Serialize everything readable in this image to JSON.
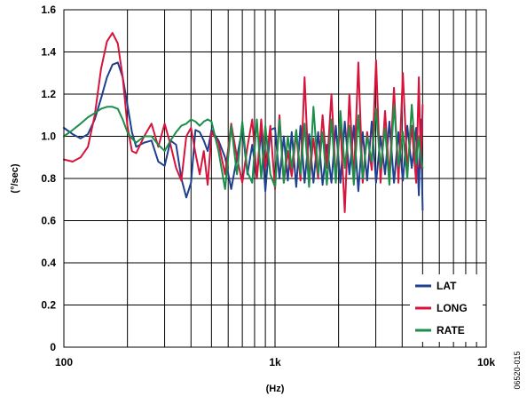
{
  "chart_data": {
    "type": "line",
    "xscale": "log",
    "xlim": [
      100,
      10000
    ],
    "ylim": [
      0,
      1.6
    ],
    "xlabel": "(Hz)",
    "ylabel": "(°/sec)",
    "figure_id": "06520-015",
    "grid": true,
    "legend_position": "bottom-right",
    "x_ticks": [
      {
        "value": 100,
        "label": "100"
      },
      {
        "value": 1000,
        "label": "1k"
      },
      {
        "value": 10000,
        "label": "10k"
      }
    ],
    "y_ticks": [
      {
        "value": 0,
        "label": "0"
      },
      {
        "value": 0.2,
        "label": "0.2"
      },
      {
        "value": 0.4,
        "label": "0.4"
      },
      {
        "value": 0.6,
        "label": "0.6"
      },
      {
        "value": 0.8,
        "label": "0.8"
      },
      {
        "value": 1.0,
        "label": "1.0"
      },
      {
        "value": 1.2,
        "label": "1.2"
      },
      {
        "value": 1.4,
        "label": "1.4"
      },
      {
        "value": 1.6,
        "label": "1.6"
      }
    ],
    "series": [
      {
        "name": "LAT",
        "color": "#1f3f8f",
        "x": [
          100,
          110,
          120,
          130,
          140,
          150,
          160,
          170,
          180,
          190,
          200,
          210,
          220,
          240,
          260,
          280,
          300,
          320,
          340,
          360,
          380,
          400,
          420,
          440,
          460,
          480,
          500,
          540,
          580,
          620,
          660,
          700,
          740,
          780,
          820,
          860,
          900,
          950,
          1000,
          1050,
          1100,
          1150,
          1200,
          1260,
          1320,
          1380,
          1450,
          1520,
          1600,
          1680,
          1760,
          1850,
          1940,
          2040,
          2140,
          2250,
          2360,
          2480,
          2600,
          2730,
          2870,
          3010,
          3160,
          3320,
          3480,
          3660,
          3840,
          4030,
          4230,
          4440,
          4660,
          4800,
          4900,
          5000
        ],
        "y": [
          1.04,
          1.01,
          0.99,
          1.01,
          1.08,
          1.18,
          1.28,
          1.34,
          1.35,
          1.28,
          1.15,
          1.02,
          0.95,
          0.97,
          0.98,
          0.88,
          0.86,
          0.98,
          0.96,
          0.8,
          0.71,
          0.78,
          1.03,
          1.02,
          0.98,
          0.93,
          1.03,
          0.98,
          0.9,
          0.75,
          0.9,
          1.04,
          0.82,
          0.96,
          0.8,
          1.03,
          0.74,
          1.03,
          1.04,
          0.8,
          1.0,
          0.79,
          1.02,
          0.76,
          1.05,
          0.78,
          1.01,
          0.78,
          1.02,
          0.77,
          0.96,
          0.78,
          1.05,
          0.78,
          1.07,
          0.82,
          1.05,
          0.74,
          1.02,
          0.79,
          1.07,
          0.78,
          1.0,
          0.82,
          1.07,
          0.78,
          1.02,
          0.79,
          1.05,
          0.85,
          1.04,
          0.72,
          1.08,
          0.65
        ]
      },
      {
        "name": "LONG",
        "color": "#d6143c",
        "x": [
          100,
          110,
          120,
          130,
          140,
          150,
          160,
          170,
          180,
          190,
          200,
          210,
          220,
          240,
          260,
          280,
          300,
          320,
          340,
          360,
          380,
          400,
          420,
          440,
          460,
          480,
          500,
          540,
          580,
          620,
          660,
          700,
          740,
          780,
          820,
          860,
          900,
          950,
          1000,
          1050,
          1100,
          1150,
          1200,
          1260,
          1320,
          1380,
          1450,
          1520,
          1600,
          1680,
          1760,
          1850,
          1940,
          2040,
          2140,
          2250,
          2360,
          2480,
          2600,
          2730,
          2870,
          3010,
          3160,
          3320,
          3480,
          3660,
          3840,
          4030,
          4230,
          4440,
          4660,
          4800,
          4900,
          5000
        ],
        "y": [
          0.89,
          0.88,
          0.9,
          0.95,
          1.1,
          1.32,
          1.45,
          1.49,
          1.44,
          1.28,
          1.05,
          0.93,
          0.92,
          1.0,
          1.06,
          0.95,
          1.06,
          0.96,
          0.85,
          0.79,
          1.0,
          1.04,
          0.92,
          0.82,
          0.93,
          0.77,
          1.02,
          0.97,
          0.82,
          1.06,
          0.9,
          0.78,
          0.95,
          1.08,
          0.8,
          1.08,
          0.85,
          1.05,
          0.75,
          1.1,
          0.78,
          0.93,
          0.81,
          1.02,
          0.79,
          1.28,
          0.78,
          0.99,
          0.8,
          1.1,
          0.85,
          1.2,
          0.8,
          1.06,
          0.64,
          1.2,
          0.79,
          1.35,
          0.78,
          1.02,
          0.84,
          1.36,
          0.78,
          1.12,
          0.8,
          1.23,
          0.78,
          1.3,
          0.84,
          1.05,
          0.78,
          1.28,
          0.85,
          1.15
        ]
      },
      {
        "name": "RATE",
        "color": "#1b8f4a",
        "x": [
          100,
          110,
          120,
          130,
          140,
          150,
          160,
          170,
          180,
          190,
          200,
          210,
          220,
          240,
          260,
          280,
          300,
          320,
          340,
          360,
          380,
          400,
          420,
          440,
          460,
          480,
          500,
          540,
          580,
          620,
          660,
          700,
          740,
          780,
          820,
          860,
          900,
          950,
          1000,
          1050,
          1100,
          1150,
          1200,
          1260,
          1320,
          1380,
          1450,
          1520,
          1600,
          1680,
          1760,
          1850,
          1940,
          2040,
          2140,
          2250,
          2360,
          2480,
          2600,
          2730,
          2870,
          3010,
          3160,
          3320,
          3480,
          3660,
          3840,
          4030,
          4230,
          4440,
          4660,
          4800,
          4900,
          5000
        ],
        "y": [
          1.0,
          1.03,
          1.06,
          1.09,
          1.11,
          1.13,
          1.14,
          1.14,
          1.13,
          1.08,
          1.02,
          0.99,
          0.97,
          1.0,
          1.0,
          0.96,
          0.93,
          0.98,
          1.02,
          1.05,
          1.06,
          1.08,
          1.07,
          1.05,
          1.07,
          1.08,
          1.07,
          0.93,
          0.75,
          1.05,
          0.82,
          1.07,
          0.83,
          0.78,
          1.08,
          0.8,
          1.05,
          0.82,
          0.76,
          1.08,
          0.78,
          1.0,
          0.85,
          1.03,
          0.82,
          1.06,
          0.76,
          1.14,
          0.82,
          1.02,
          0.77,
          1.08,
          0.78,
          1.12,
          0.85,
          1.05,
          0.77,
          1.1,
          0.8,
          1.0,
          0.88,
          1.13,
          0.85,
          1.04,
          0.77,
          1.15,
          0.86,
          1.02,
          0.8,
          1.15,
          0.87,
          1.0,
          0.9,
          0.85
        ]
      }
    ]
  }
}
